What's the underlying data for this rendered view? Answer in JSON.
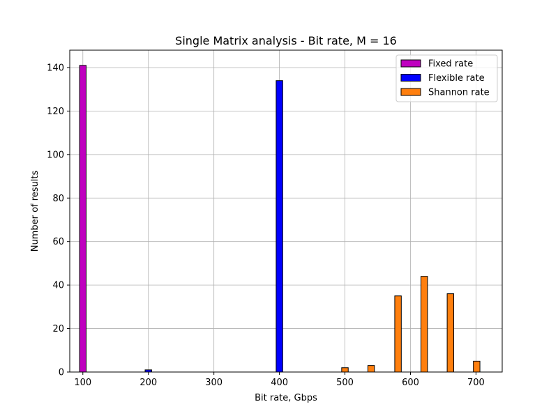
{
  "chart_data": {
    "type": "bar",
    "title": "Single Matrix analysis - Bit rate, M = 16",
    "xlabel": "Bit rate, Gbps",
    "ylabel": "Number of results",
    "xlim": [
      80,
      740
    ],
    "ylim": [
      0,
      148
    ],
    "xticks": [
      100,
      200,
      300,
      400,
      500,
      600,
      700
    ],
    "yticks": [
      0,
      20,
      40,
      60,
      80,
      100,
      120,
      140
    ],
    "grid": true,
    "legend_position": "top-right",
    "series": [
      {
        "name": "Fixed rate",
        "color": "#bf00bf",
        "bars": [
          {
            "x": 100,
            "value": 141
          },
          {
            "x": 400,
            "value": 0
          }
        ]
      },
      {
        "name": "Flexible rate",
        "color": "#0000ff",
        "bars": [
          {
            "x": 200,
            "value": 1
          },
          {
            "x": 400,
            "value": 134
          }
        ]
      },
      {
        "name": "Shannon rate",
        "color": "#ff7f0e",
        "bars": [
          {
            "x": 500,
            "value": 2
          },
          {
            "x": 540,
            "value": 3
          },
          {
            "x": 581,
            "value": 35
          },
          {
            "x": 621,
            "value": 44
          },
          {
            "x": 661,
            "value": 36
          },
          {
            "x": 701,
            "value": 5
          }
        ]
      }
    ]
  }
}
